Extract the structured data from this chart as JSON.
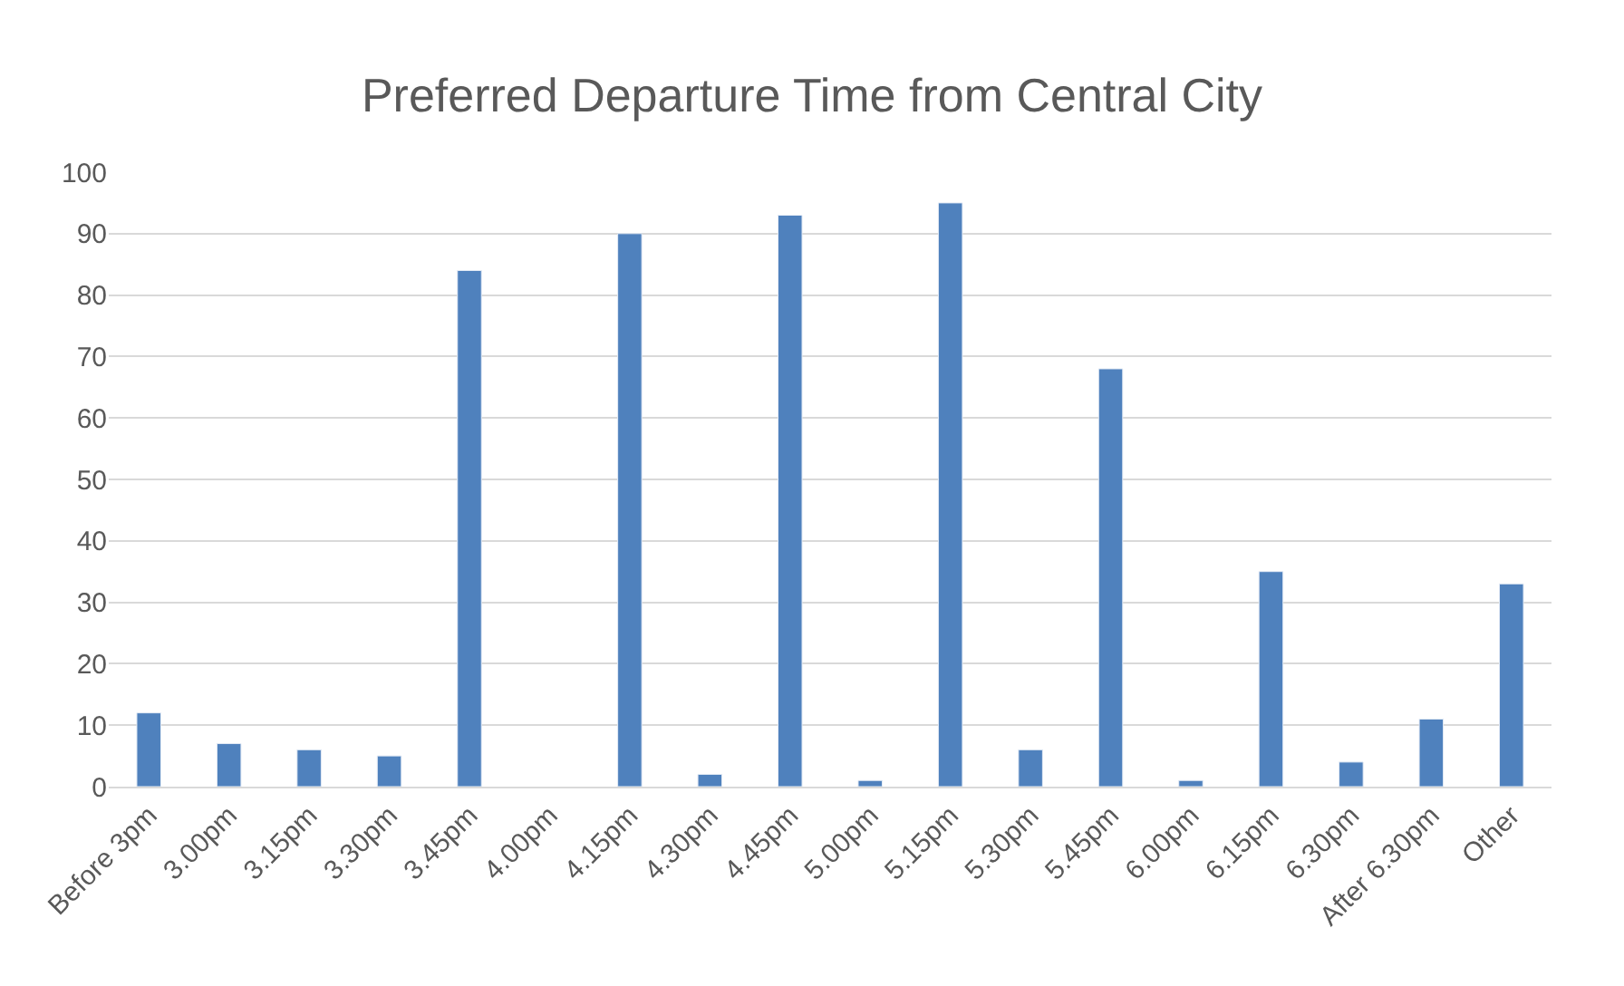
{
  "chart_data": {
    "type": "bar",
    "title": "Preferred Departure Time from Central City",
    "categories": [
      "Before 3pm",
      "3.00pm",
      "3.15pm",
      "3.30pm",
      "3.45pm",
      "4.00pm",
      "4.15pm",
      "4.30pm",
      "4.45pm",
      "5.00pm",
      "5.15pm",
      "5.30pm",
      "5.45pm",
      "6.00pm",
      "6.15pm",
      "6.30pm",
      "After 6.30pm",
      "Other"
    ],
    "values": [
      12,
      7,
      6,
      5,
      84,
      null,
      90,
      2,
      93,
      1,
      95,
      6,
      68,
      1,
      35,
      4,
      11,
      33
    ],
    "color": "#4f81bd",
    "ylim": [
      0,
      100
    ],
    "yticks": [
      0,
      10,
      20,
      30,
      40,
      50,
      60,
      70,
      80,
      90,
      100
    ],
    "grid": "y"
  }
}
